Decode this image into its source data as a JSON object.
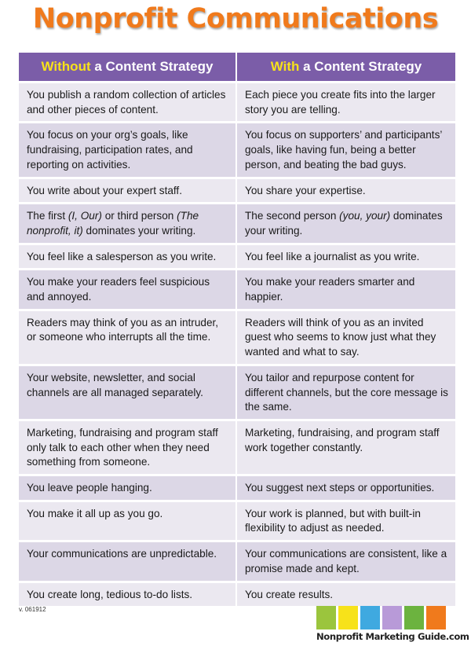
{
  "title": "Nonprofit Communications",
  "header": {
    "left": {
      "highlight": "Without",
      "rest": " a Content Strategy"
    },
    "right": {
      "highlight": "With",
      "rest": " a Content Strategy"
    }
  },
  "rows": [
    {
      "left": [
        "You publish a random collection of articles and other pieces of content."
      ],
      "right": [
        "Each piece you create fits into the larger story you are telling."
      ]
    },
    {
      "left": [
        "You focus on your org’s goals, like fundraising, participation rates, and reporting on activities."
      ],
      "right": [
        "You focus on supporters’ and participants’ goals, like having fun, being a better person, and beating the bad guys."
      ]
    },
    {
      "left": [
        "You write about your expert staff."
      ],
      "right": [
        "You share your expertise."
      ]
    },
    {
      "left": [
        "The first ",
        "(I, Our)",
        " or third person ",
        "(The nonprofit, it)",
        " dominates your writing."
      ],
      "right": [
        "The second person ",
        "(you, your)",
        " dominates your writing."
      ]
    },
    {
      "left": [
        "You feel like a salesperson as you write."
      ],
      "right": [
        "You feel like a journalist as you write."
      ]
    },
    {
      "left": [
        "You make your readers feel suspicious and annoyed."
      ],
      "right": [
        "You make your readers smarter and happier."
      ]
    },
    {
      "left": [
        "Readers may think of you as an intruder, or someone who interrupts all the time."
      ],
      "right": [
        "Readers will think of you as an invited guest who seems to know just what they wanted and what to say."
      ]
    },
    {
      "left": [
        "Your website, newsletter, and social channels are all managed separately."
      ],
      "right": [
        "You tailor and repurpose content for different channels, but the core message is the same."
      ]
    },
    {
      "left": [
        "Marketing, fundraising and program staff only talk to each other when they need something from someone."
      ],
      "right": [
        "Marketing, fundraising, and program staff work together constantly."
      ]
    },
    {
      "left": [
        "You leave people hanging."
      ],
      "right": [
        "You suggest next steps or opportunities."
      ]
    },
    {
      "left": [
        "You make it all up as you go."
      ],
      "right": [
        "Your work is planned, but with built-in flexibility to adjust as needed."
      ]
    },
    {
      "left": [
        "Your communications are unpredictable."
      ],
      "right": [
        "Your communications are consistent, like a promise made and kept."
      ]
    },
    {
      "left": [
        "You create long, tedious to-do lists."
      ],
      "right": [
        "You create results."
      ]
    }
  ],
  "footer": {
    "version": "v. 061912",
    "logo_text": "Nonprofit Marketing Guide.com",
    "logo_colors": [
      "#9bc53d",
      "#f7e21a",
      "#3fa9e0",
      "#b89ad8",
      "#6cb33f",
      "#f07a1c"
    ]
  },
  "colors": {
    "title": "#f07a1c",
    "header_bg": "#7b5da8",
    "header_highlight": "#f7e21a",
    "row_light": "#ebe8f0",
    "row_dark": "#dcd7e6"
  }
}
